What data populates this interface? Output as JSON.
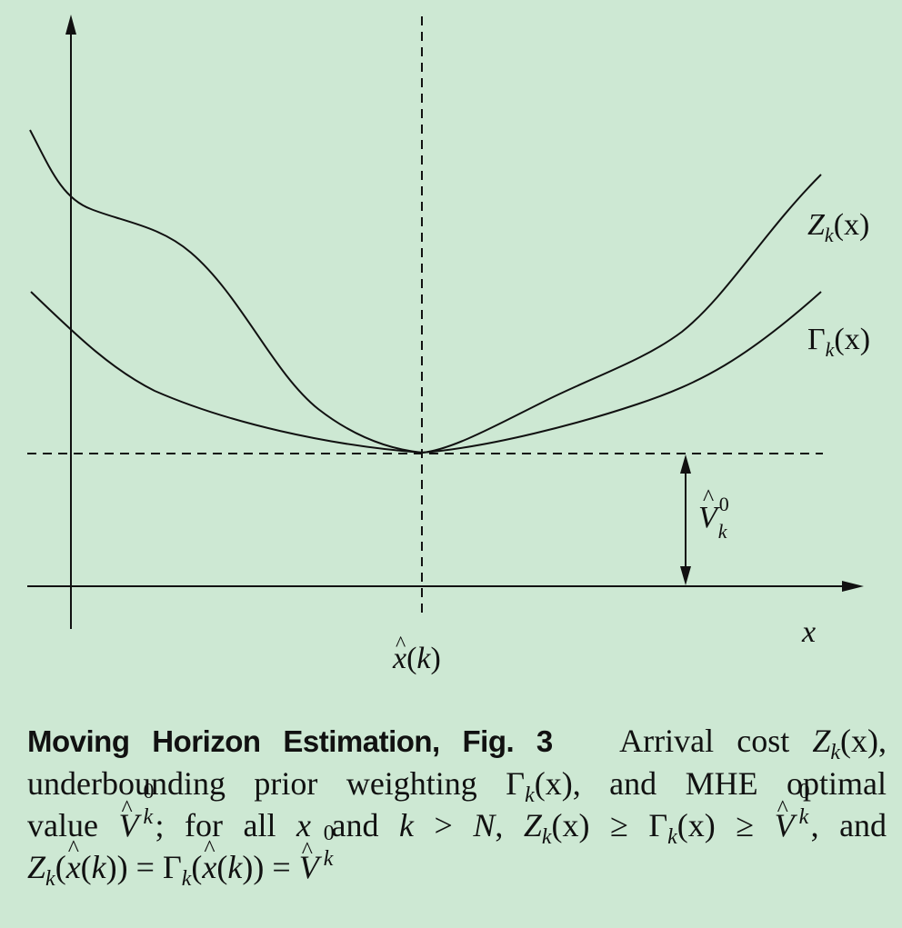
{
  "figure": {
    "labels": {
      "z_curve": "Z_k(x)",
      "gamma_curve": "Γ_k(x)",
      "v_hat": "V̂_k^0",
      "x_hat": "x̂(k)",
      "x_axis": "x"
    },
    "colors": {
      "background": "#cde8d3",
      "ink": "#111111"
    }
  },
  "caption": {
    "heading": "Moving Horizon Estimation, Fig. 3",
    "line1_text": "Arrival cost",
    "line2_a": "underbounding prior weighting",
    "line2_b": ", and MHE optimal",
    "line3_a": "value",
    "line3_b": "; for all",
    "line3_c": "and",
    "line3_d": ">",
    "line3_e": ",",
    "line3_f": ", and",
    "sym_x": "x",
    "sym_k": "k",
    "sym_N": "N",
    "sym_Z": "Z",
    "sym_Gamma": "Γ",
    "sym_V": "V",
    "sym_hat": "^",
    "sym_zero": "0",
    "sym_ge": "≥",
    "sym_eq": "=",
    "arg_x": "(x)",
    "arg_xhat_open": "(",
    "arg_xhat_close": "(k))"
  }
}
